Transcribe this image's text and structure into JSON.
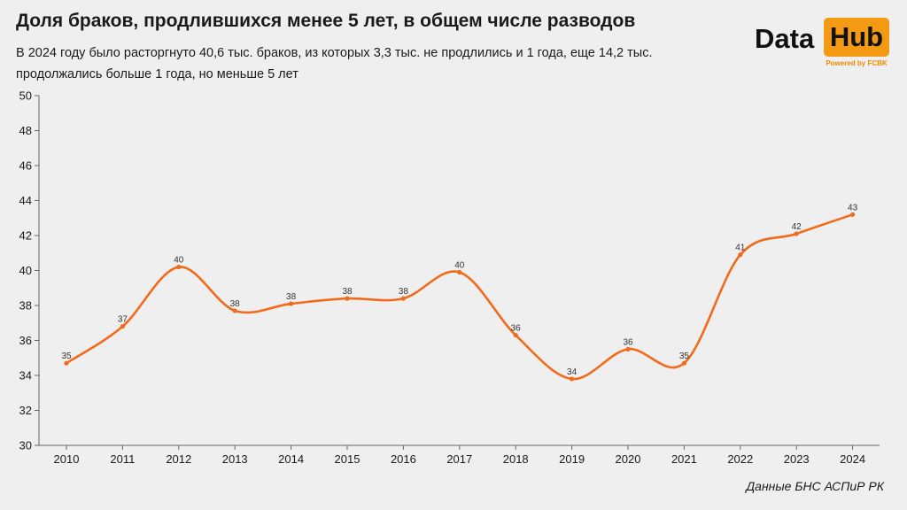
{
  "header": {
    "title": "Доля браков, продлившихся менее 5 лет, в общем числе разводов",
    "subtitle": "В 2024 году было расторгнуто 40,6 тыс. браков, из которых 3,3 тыс. не продлились и 1 года, еще 14,2 тыс. продолжались больше 1 года, но меньше 5 лет"
  },
  "logo": {
    "word1": "Data",
    "word2": "Hub",
    "tagline": "Powered by FCBK",
    "accent": "#f39a12"
  },
  "source": "Данные БНС АСПиР РК",
  "chart_data": {
    "type": "line",
    "title": "Доля браков, продлившихся менее 5 лет, в общем числе разводов",
    "xlabel": "",
    "ylabel": "",
    "ylim": [
      30,
      50
    ],
    "yticks": [
      30,
      32,
      34,
      36,
      38,
      40,
      42,
      44,
      46,
      48,
      50
    ],
    "grid": false,
    "legend": "none",
    "color": "#f26a1b",
    "categories": [
      "2010",
      "2011",
      "2012",
      "2013",
      "2014",
      "2015",
      "2016",
      "2017",
      "2018",
      "2019",
      "2020",
      "2021",
      "2022",
      "2023",
      "2024"
    ],
    "series": [
      {
        "values": [
          34.7,
          36.8,
          40.2,
          37.7,
          38.1,
          38.4,
          38.4,
          39.9,
          36.3,
          33.8,
          35.5,
          34.7,
          40.9,
          42.1,
          43.2
        ],
        "labels": [
          "35",
          "37",
          "40",
          "38",
          "38",
          "38",
          "38",
          "40",
          "36",
          "34",
          "36",
          "35",
          "41",
          "42",
          "43"
        ]
      }
    ]
  }
}
